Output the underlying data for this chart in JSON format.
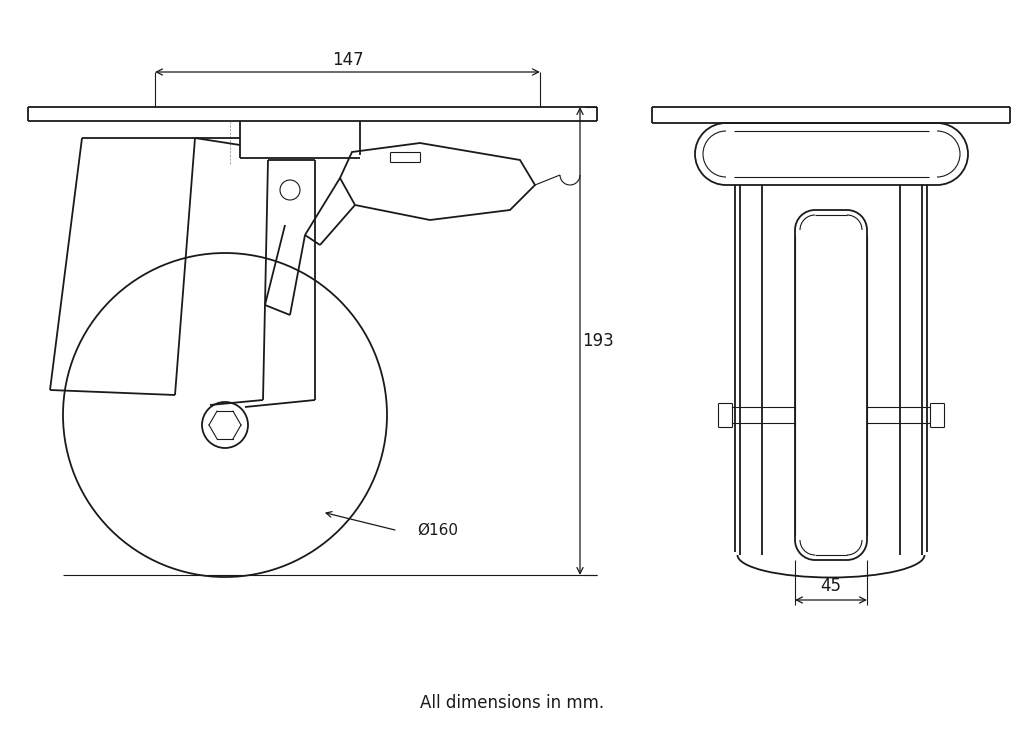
{
  "bg_color": "#ffffff",
  "line_color": "#1a1a1a",
  "linewidth": 1.3,
  "thin_lw": 0.8,
  "fig_width": 10.24,
  "fig_height": 7.43,
  "footer_text": "All dimensions in mm.",
  "dim_147": "147",
  "dim_193": "193",
  "dim_160": "Ø160",
  "dim_45": "45"
}
